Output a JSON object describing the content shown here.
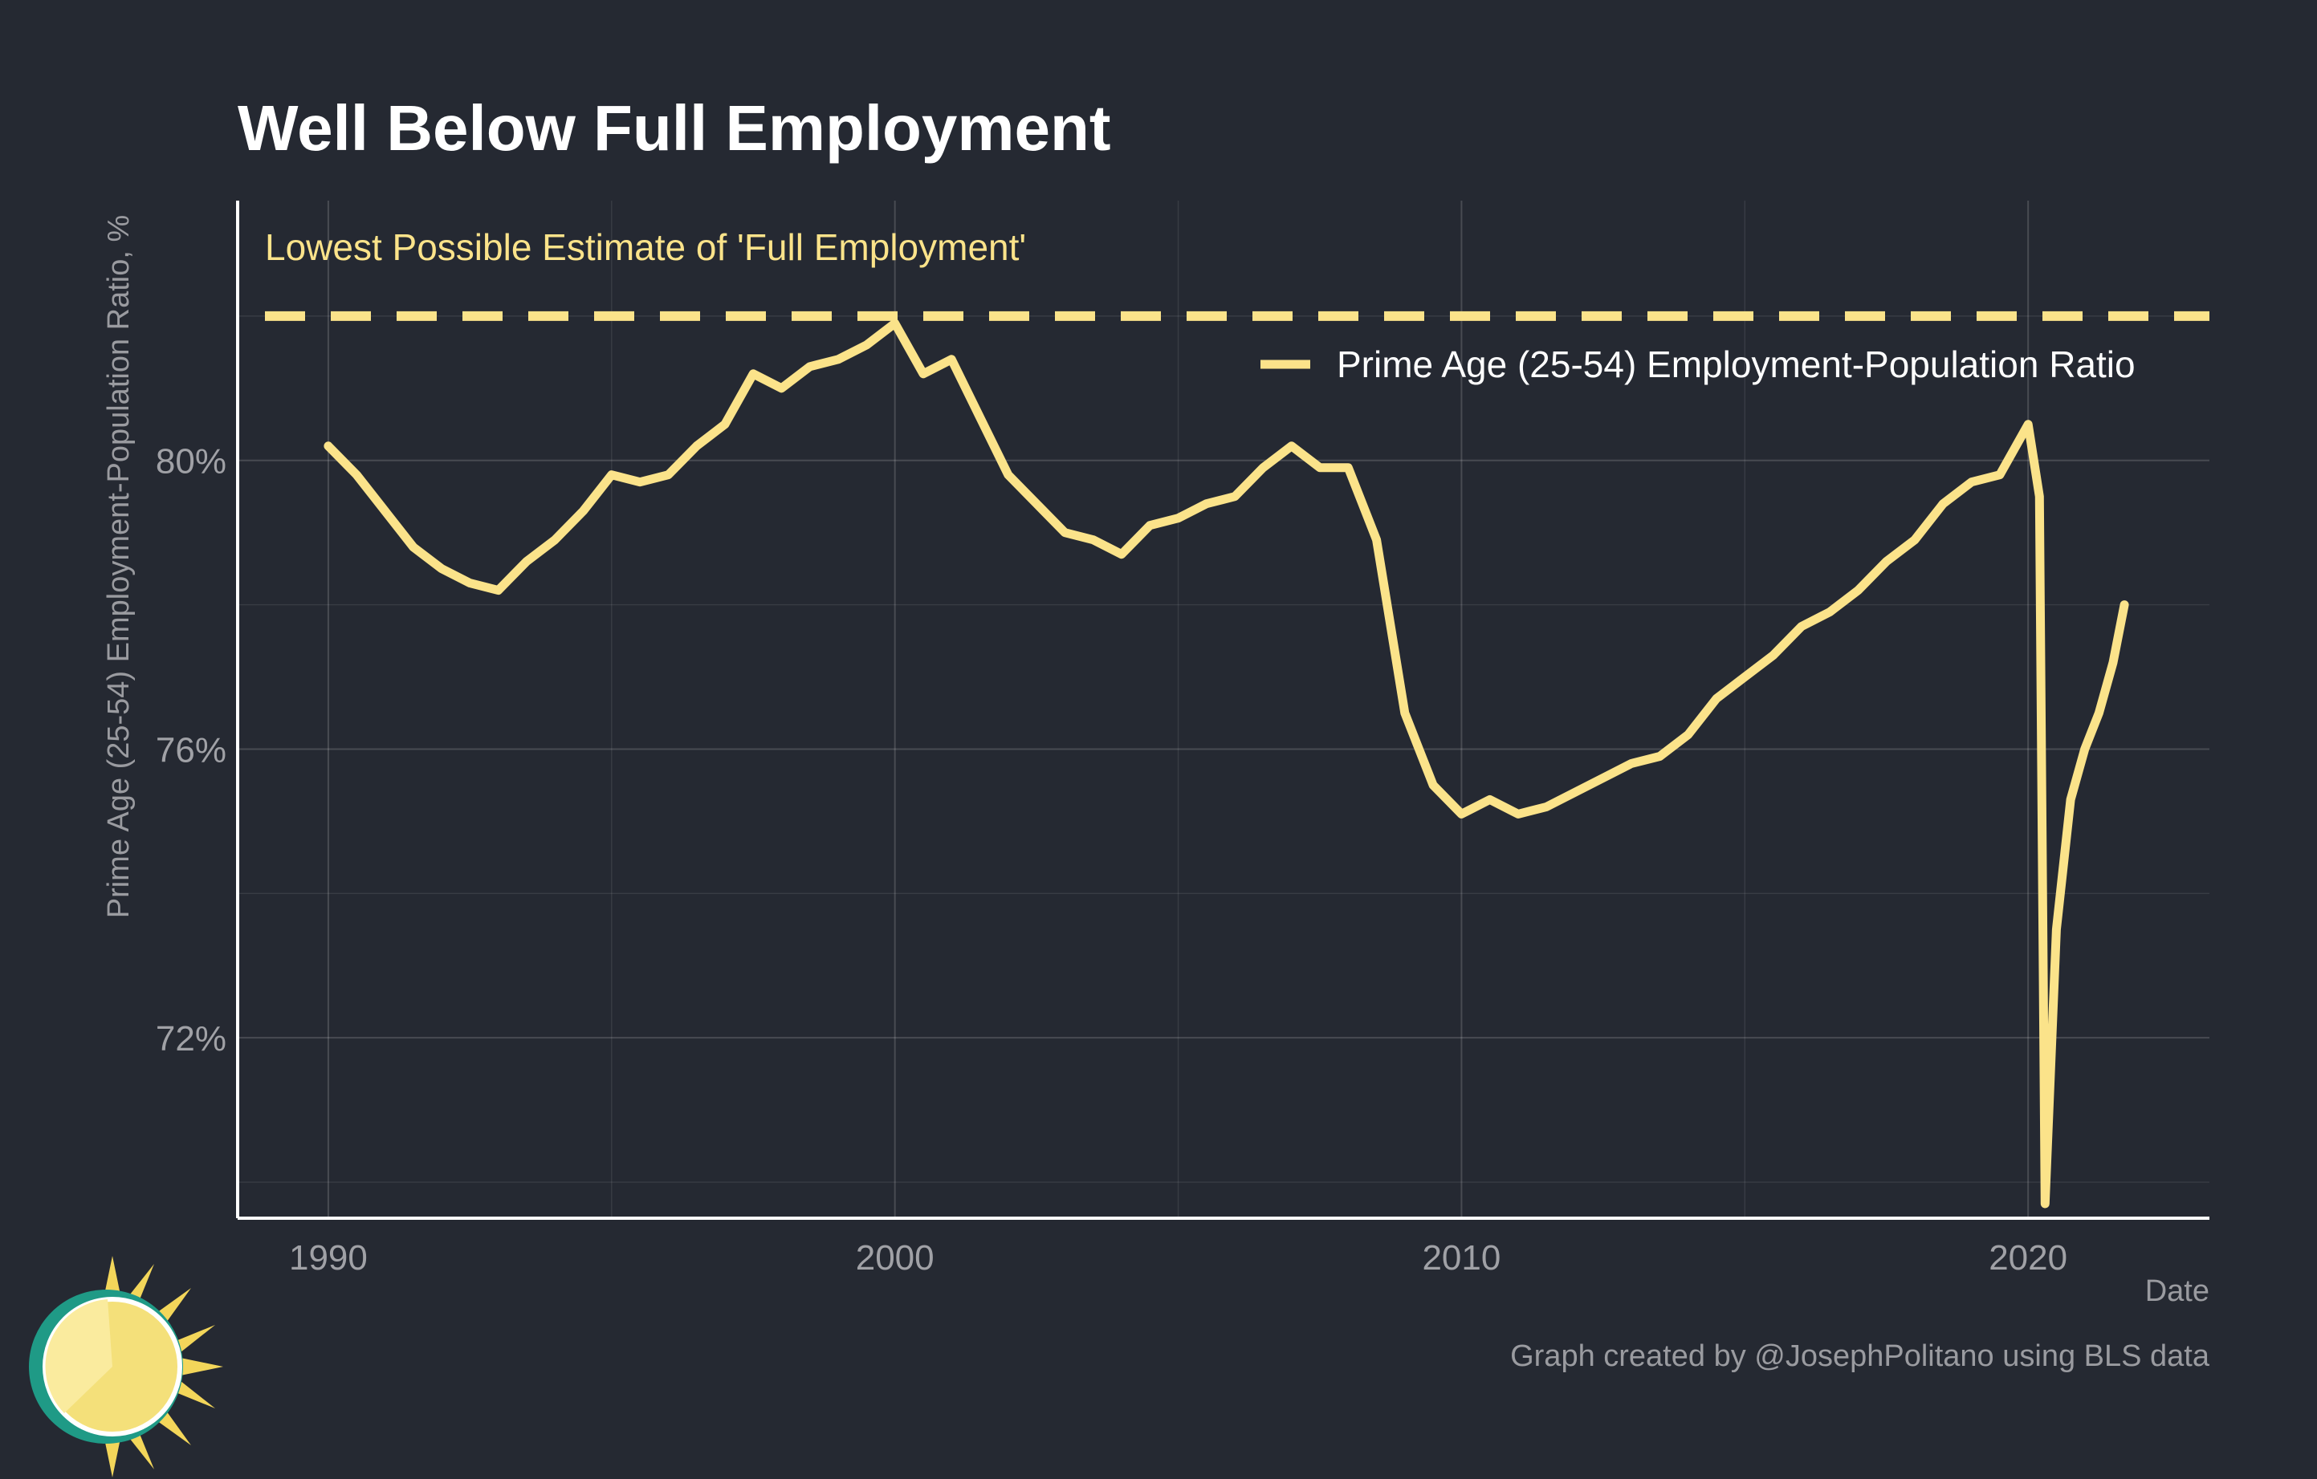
{
  "chart_data": {
    "type": "line",
    "title": "Well Below Full Employment",
    "xlabel": "Date",
    "ylabel": "Prime Age (25-54) Employment-Population Ratio, %",
    "xlim": [
      1988.4,
      2023.2
    ],
    "ylim": [
      69.5,
      83.6
    ],
    "x_ticks": [
      1990,
      2000,
      2010,
      2020
    ],
    "y_ticks": [
      72,
      76,
      80
    ],
    "y_tick_labels": [
      "72%",
      "76%",
      "80%"
    ],
    "grid": true,
    "legend_position": "top-right",
    "reference_line": {
      "value": 82.0,
      "label": "Lowest Possible Estimate of 'Full Employment'",
      "style": "dashed"
    },
    "series": [
      {
        "name": "Prime Age (25-54) Employment-Population Ratio",
        "color": "#FBE38A",
        "points": [
          [
            1990.0,
            80.2
          ],
          [
            1990.5,
            79.8
          ],
          [
            1991.0,
            79.3
          ],
          [
            1991.5,
            78.8
          ],
          [
            1992.0,
            78.5
          ],
          [
            1992.5,
            78.3
          ],
          [
            1993.0,
            78.2
          ],
          [
            1993.5,
            78.6
          ],
          [
            1994.0,
            78.9
          ],
          [
            1994.5,
            79.3
          ],
          [
            1995.0,
            79.8
          ],
          [
            1995.5,
            79.7
          ],
          [
            1996.0,
            79.8
          ],
          [
            1996.5,
            80.2
          ],
          [
            1997.0,
            80.5
          ],
          [
            1997.5,
            81.2
          ],
          [
            1998.0,
            81.0
          ],
          [
            1998.5,
            81.3
          ],
          [
            1999.0,
            81.4
          ],
          [
            1999.5,
            81.6
          ],
          [
            2000.0,
            81.9
          ],
          [
            2000.5,
            81.2
          ],
          [
            2001.0,
            81.4
          ],
          [
            2001.5,
            80.6
          ],
          [
            2002.0,
            79.8
          ],
          [
            2002.5,
            79.4
          ],
          [
            2003.0,
            79.0
          ],
          [
            2003.5,
            78.9
          ],
          [
            2004.0,
            78.7
          ],
          [
            2004.5,
            79.1
          ],
          [
            2005.0,
            79.2
          ],
          [
            2005.5,
            79.4
          ],
          [
            2006.0,
            79.5
          ],
          [
            2006.5,
            79.9
          ],
          [
            2007.0,
            80.2
          ],
          [
            2007.5,
            79.9
          ],
          [
            2008.0,
            79.9
          ],
          [
            2008.5,
            78.9
          ],
          [
            2009.0,
            76.5
          ],
          [
            2009.5,
            75.5
          ],
          [
            2010.0,
            75.1
          ],
          [
            2010.5,
            75.3
          ],
          [
            2011.0,
            75.1
          ],
          [
            2011.5,
            75.2
          ],
          [
            2012.0,
            75.4
          ],
          [
            2012.5,
            75.6
          ],
          [
            2013.0,
            75.8
          ],
          [
            2013.5,
            75.9
          ],
          [
            2014.0,
            76.2
          ],
          [
            2014.5,
            76.7
          ],
          [
            2015.0,
            77.0
          ],
          [
            2015.5,
            77.3
          ],
          [
            2016.0,
            77.7
          ],
          [
            2016.5,
            77.9
          ],
          [
            2017.0,
            78.2
          ],
          [
            2017.5,
            78.6
          ],
          [
            2018.0,
            78.9
          ],
          [
            2018.5,
            79.4
          ],
          [
            2019.0,
            79.7
          ],
          [
            2019.5,
            79.8
          ],
          [
            2020.0,
            80.5
          ],
          [
            2020.2,
            79.5
          ],
          [
            2020.3,
            69.7
          ],
          [
            2020.5,
            73.5
          ],
          [
            2020.75,
            75.3
          ],
          [
            2021.0,
            76.0
          ],
          [
            2021.25,
            76.5
          ],
          [
            2021.5,
            77.2
          ],
          [
            2021.7,
            78.0
          ]
        ]
      }
    ]
  },
  "caption": "Graph created by @JosephPolitano using BLS data"
}
